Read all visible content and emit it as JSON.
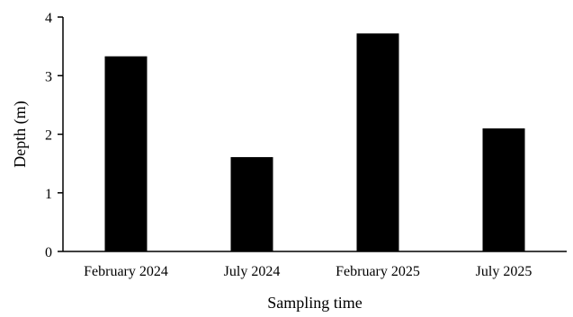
{
  "chart_data": {
    "type": "bar",
    "categories": [
      "February 2024",
      "July 2024",
      "February 2025",
      "July 2025"
    ],
    "values": [
      3.33,
      1.61,
      3.72,
      2.1
    ],
    "xlabel": "Sampling time",
    "ylabel": "Depth (m)",
    "ylim": [
      0,
      4
    ],
    "yticks": [
      "0",
      "1",
      "2",
      "3",
      "4"
    ],
    "grid": false,
    "legend": "none",
    "bar_color": "#000000"
  }
}
